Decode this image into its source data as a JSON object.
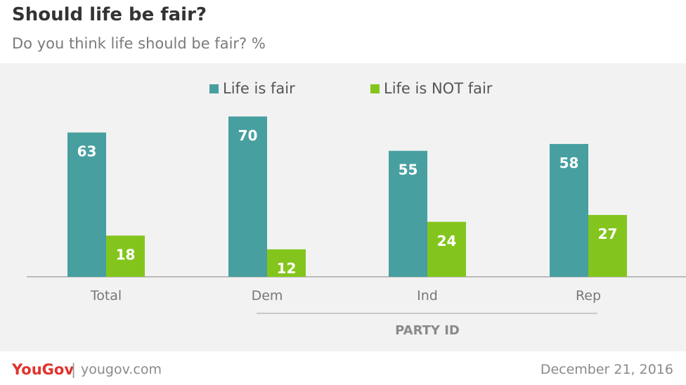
{
  "header": {
    "title": "Should life be fair?",
    "subtitle": "Do you think life should be fair? %"
  },
  "chart_data": {
    "type": "bar",
    "categories": [
      "Total",
      "Dem",
      "Ind",
      "Rep"
    ],
    "group_label": "PARTY ID",
    "group_categories": [
      "Dem",
      "Ind",
      "Rep"
    ],
    "series": [
      {
        "name": "Life is fair",
        "color": "#479fa0",
        "values": [
          63,
          70,
          55,
          58
        ]
      },
      {
        "name": "Life is NOT fair",
        "color": "#84c51d",
        "values": [
          18,
          12,
          24,
          27
        ]
      }
    ],
    "ylim": [
      0,
      70
    ],
    "grid": false,
    "legend": "top-center"
  },
  "footer": {
    "brand": "YouGov",
    "separator": "|",
    "url": "yougov.com",
    "date": "December 21, 2016"
  }
}
